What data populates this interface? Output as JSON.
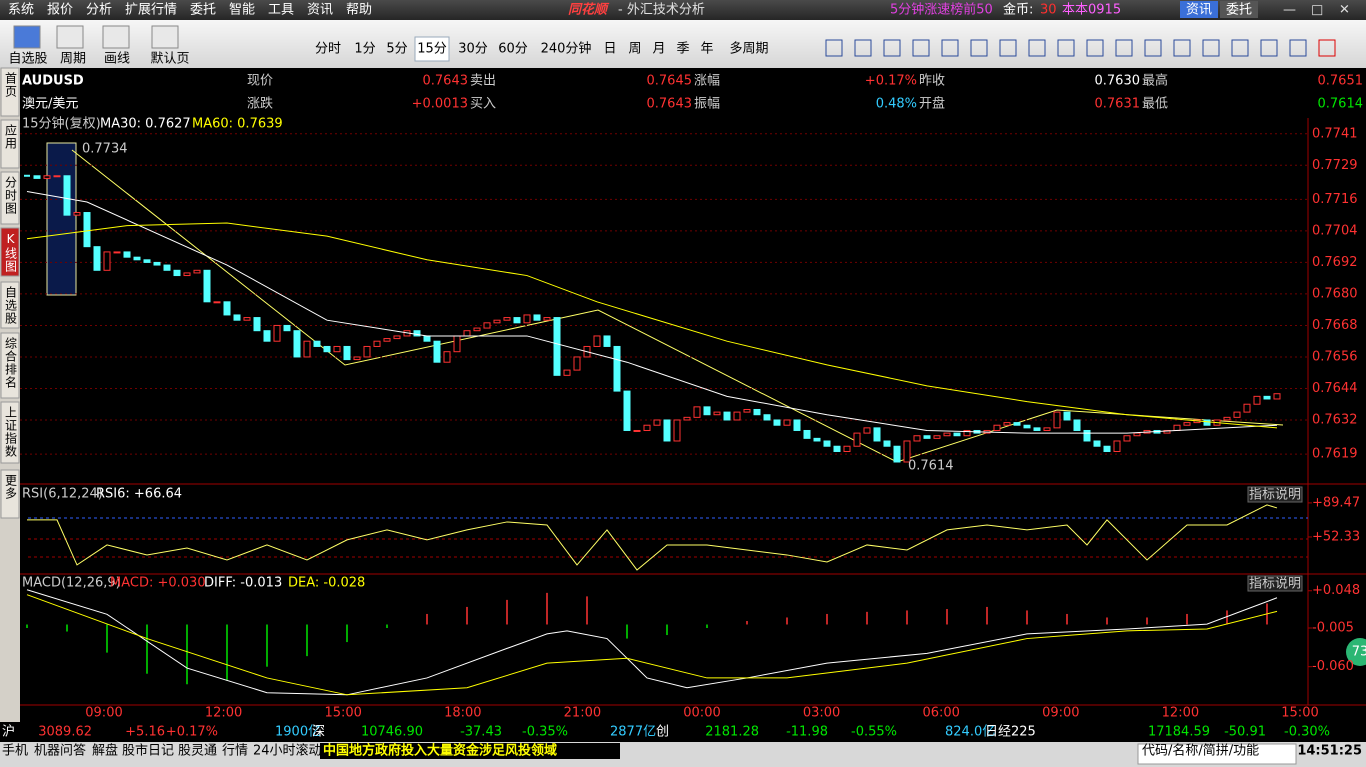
{
  "menu": [
    "系统",
    "报价",
    "分析",
    "扩展行情",
    "委托",
    "智能",
    "工具",
    "资讯",
    "帮助"
  ],
  "app_title": {
    "logo": "同花顺",
    "text": "- 外汇技术分析"
  },
  "top_right": {
    "ranking": "5分钟涨速榜前50",
    "gold_label": "金币:",
    "gold": "30",
    "user": "本本0915",
    "buttons": [
      "资讯",
      "委托"
    ]
  },
  "toolbar": {
    "tools": [
      "自选股",
      "周期",
      "画线",
      "默认页"
    ],
    "periods": [
      "分时",
      "1分",
      "5分",
      "15分",
      "30分",
      "60分",
      "240分钟",
      "日",
      "周",
      "月",
      "季",
      "年",
      "多周期"
    ],
    "active_period": "15分"
  },
  "side_tabs": [
    "首页",
    "应用",
    "分时图",
    "K线图",
    "自选股",
    "综合排名",
    "上证指数",
    "更多"
  ],
  "quote": {
    "symbol": "AUDUSD",
    "name": "澳元/美元",
    "rows": [
      [
        {
          "label": "现价",
          "value": "0.7643"
        },
        {
          "label": "卖出",
          "value": "0.7645"
        },
        {
          "label": "涨幅",
          "value": "+0.17%"
        },
        {
          "label": "昨收",
          "value": "0.7630"
        },
        {
          "label": "最高",
          "value": "0.7651"
        }
      ],
      [
        {
          "label": "涨跌",
          "value": "+0.0013"
        },
        {
          "label": "买入",
          "value": "0.7643"
        },
        {
          "label": "振幅",
          "value": "0.48%"
        },
        {
          "label": "开盘",
          "value": "0.7631"
        },
        {
          "label": "最低",
          "value": "0.7614"
        }
      ]
    ]
  },
  "price_chart": {
    "type": "candlestick",
    "period_label": "15分钟(复权)",
    "ma30_label": "MA30: 0.7627",
    "ma60_label": "MA60: 0.7639",
    "ylim": [
      0.7608,
      0.7747
    ],
    "yticks": [
      0.7741,
      0.7729,
      0.7716,
      0.7704,
      0.7692,
      {
        "value": 0.768,
        "label": "0.7680"
      },
      0.7668,
      0.7656,
      0.7644,
      0.7632,
      0.7619
    ],
    "closes": [
      0.7725,
      0.7724,
      0.7725,
      0.7725,
      0.771,
      0.7711,
      0.7698,
      0.7689,
      0.7696,
      0.7696,
      0.7694,
      0.7693,
      0.7692,
      0.7691,
      0.7689,
      0.7687,
      0.7688,
      0.7689,
      0.7677,
      0.7677,
      0.7672,
      0.767,
      0.7671,
      0.7666,
      0.7662,
      0.7668,
      0.7666,
      0.7656,
      0.7662,
      0.766,
      0.7658,
      0.766,
      0.7655,
      0.7656,
      0.766,
      0.7662,
      0.7663,
      0.7664,
      0.7666,
      0.7664,
      0.7662,
      0.7654,
      0.7658,
      0.7664,
      0.7666,
      0.7667,
      0.7669,
      0.767,
      0.7671,
      0.7669,
      0.7672,
      0.767,
      0.7671,
      0.7649,
      0.7651,
      0.7656,
      0.766,
      0.7664,
      0.766,
      0.7643,
      0.7628,
      0.7628,
      0.763,
      0.7632,
      0.7624,
      0.7632,
      0.7633,
      0.7637,
      0.7634,
      0.7635,
      0.7632,
      0.7635,
      0.7636,
      0.7634,
      0.7632,
      0.763,
      0.7632,
      0.7628,
      0.7625,
      0.7624,
      0.7622,
      0.762,
      0.7622,
      0.7627,
      0.7629,
      0.7624,
      0.7622,
      0.7616,
      0.7624,
      0.7626,
      0.7625,
      0.7626,
      0.7627,
      0.7626,
      0.7628,
      0.7627,
      0.7628,
      0.763,
      0.7631,
      0.763,
      0.7629,
      0.7628,
      0.7629,
      0.7635,
      0.7632,
      0.7628,
      0.7624,
      0.7622,
      0.762,
      0.7624,
      0.7626,
      0.7627,
      0.7628,
      0.7627,
      0.7628,
      0.763,
      0.7631,
      0.7632,
      0.763,
      0.7632,
      0.7633,
      0.7635,
      0.7638,
      0.7641,
      0.764,
      0.7642
    ],
    "ma30": {
      "name": "MA30",
      "color": "#ffffff",
      "x": [
        0,
        6,
        20,
        30,
        40,
        50,
        60,
        70,
        80,
        90,
        100,
        110,
        125
      ],
      "values": [
        0.7719,
        0.7715,
        0.7691,
        0.767,
        0.7664,
        0.7664,
        0.7654,
        0.7641,
        0.7634,
        0.7628,
        0.7627,
        0.7627,
        0.763
      ]
    },
    "ma60": {
      "name": "MA60",
      "color": "#ffff00",
      "x": [
        0,
        10,
        20,
        30,
        40,
        50,
        57,
        70,
        80,
        90,
        100,
        110,
        125
      ],
      "values": [
        0.7701,
        0.7706,
        0.7707,
        0.7702,
        0.7693,
        0.7687,
        0.7677,
        0.7662,
        0.7653,
        0.7645,
        0.7639,
        0.7634,
        0.7629
      ]
    },
    "annotations": [
      "0.7734",
      "0.7614"
    ],
    "time_labels": [
      "09:00",
      "12:00",
      "15:00",
      "18:00",
      "21:00",
      "00:00",
      "03:00",
      "06:00",
      "09:00",
      "12:00",
      "15:00"
    ]
  },
  "rsi": {
    "type": "line",
    "label": "RSI(6,12,24)",
    "value_label": "RSI6: +66.64",
    "help": "指标说明",
    "ylim": [
      13,
      109
    ],
    "yticks": [
      {
        "value": 89.47,
        "label": "+89.47"
      },
      {
        "value": 52.33,
        "label": "+52.33"
      }
    ],
    "x": [
      0,
      3,
      5,
      8,
      12,
      16,
      20,
      24,
      28,
      32,
      36,
      40,
      44,
      48,
      52,
      55,
      58,
      61,
      64,
      68,
      72,
      76,
      80,
      84,
      88,
      92,
      96,
      100,
      104,
      106,
      108,
      112,
      116,
      120,
      124,
      125
    ],
    "values": [
      70.9,
      70.9,
      21.8,
      43.6,
      32.7,
      40.3,
      27.2,
      43.6,
      27.2,
      49.1,
      60,
      49.1,
      60,
      68.7,
      65.4,
      21.8,
      60,
      16.3,
      43.6,
      43.6,
      38.1,
      32.7,
      25,
      43.6,
      38.1,
      60,
      65.4,
      60,
      65.4,
      43.6,
      70.9,
      27.2,
      65.4,
      65.4,
      87.3,
      84
    ]
  },
  "macd": {
    "type": "bar",
    "label": "MACD(12,26,9)",
    "macd_label": "MACD: +0.030",
    "diff_label": "DIFF: -0.013",
    "dea_label": "DEA: -0.028",
    "help": "指标说明",
    "ylim": [
      -0.1145,
      0.0704
    ],
    "yticks": [
      {
        "value": 0.048,
        "label": "+0.048"
      },
      -0.005,
      {
        "value": -0.06,
        "label": "-0.060"
      }
    ],
    "hist": {
      "x": [
        0,
        4,
        8,
        12,
        16,
        20,
        24,
        28,
        32,
        36,
        40,
        44,
        48,
        52,
        56,
        60,
        64,
        68,
        72,
        76,
        80,
        84,
        88,
        92,
        96,
        100,
        104,
        108,
        112,
        116,
        120,
        124
      ],
      "values": [
        -0.005,
        -0.01,
        -0.04,
        -0.07,
        -0.085,
        -0.08,
        -0.06,
        -0.045,
        -0.025,
        -0.005,
        0.015,
        0.025,
        0.035,
        0.045,
        0.04,
        -0.02,
        -0.015,
        -0.005,
        0.005,
        0.01,
        0.015,
        0.018,
        0.02,
        0.022,
        0.025,
        0.02,
        0.015,
        0.01,
        0.01,
        0.015,
        0.02,
        0.03
      ]
    },
    "diff": {
      "name": "DIFF",
      "color": "#ffffff",
      "x": [
        0,
        8,
        16,
        24,
        32,
        40,
        48,
        52,
        54,
        58,
        62,
        66,
        72,
        80,
        90,
        100,
        110,
        118,
        125
      ],
      "values": [
        0.0494,
        0.0145,
        -0.062,
        -0.097,
        -0.1,
        -0.076,
        -0.034,
        -0.0134,
        -0.009,
        -0.02,
        -0.076,
        -0.09,
        -0.076,
        -0.055,
        -0.041,
        -0.0134,
        -0.0064,
        0.0006,
        0.038
      ]
    },
    "dea": {
      "name": "DEA",
      "color": "#ffff00",
      "x": [
        0,
        12,
        24,
        32,
        44,
        52,
        60,
        68,
        76,
        88,
        100,
        110,
        118,
        125
      ],
      "values": [
        0.0424,
        -0.02,
        -0.076,
        -0.1,
        -0.09,
        -0.055,
        -0.048,
        -0.076,
        -0.076,
        -0.055,
        -0.02,
        -0.009,
        -0.0064,
        0.0187
      ]
    }
  },
  "side_badge": "73",
  "ticker": [
    {
      "text": "沪",
      "c": "#ffffff"
    },
    {
      "text": "3089.62",
      "c": "#ff3232"
    },
    {
      "text": "+5.16",
      "c": "#ff3232"
    },
    {
      "text": "+0.17%",
      "c": "#ff3232"
    },
    {
      "text": "1900亿",
      "c": "#33ccff"
    },
    {
      "text": "深",
      "c": "#ffffff"
    },
    {
      "text": "10746.90",
      "c": "#00e600"
    },
    {
      "text": "-37.43",
      "c": "#00e600"
    },
    {
      "text": "-0.35%",
      "c": "#00e600"
    },
    {
      "text": "2877亿",
      "c": "#33ccff"
    },
    {
      "text": "创",
      "c": "#ffffff"
    },
    {
      "text": "2181.28",
      "c": "#00e600"
    },
    {
      "text": "-11.98",
      "c": "#00e600"
    },
    {
      "text": "-0.55%",
      "c": "#00e600"
    },
    {
      "text": "824.0亿",
      "c": "#33ccff"
    },
    {
      "text": "日经225",
      "c": "#ffffff"
    },
    {
      "text": "17184.59",
      "c": "#00e600"
    },
    {
      "text": "-50.91",
      "c": "#00e600"
    },
    {
      "text": "-0.30%",
      "c": "#00e600"
    }
  ],
  "status_bar": {
    "items": [
      "手机",
      "机器问答",
      "解盘",
      "股市日记",
      "股灵通",
      "行情",
      "24小时滚动"
    ],
    "news": "中国地方政府投入大量资金涉足风投领域",
    "search": "代码/名称/简拼/功能",
    "clock": "14:51:25"
  }
}
